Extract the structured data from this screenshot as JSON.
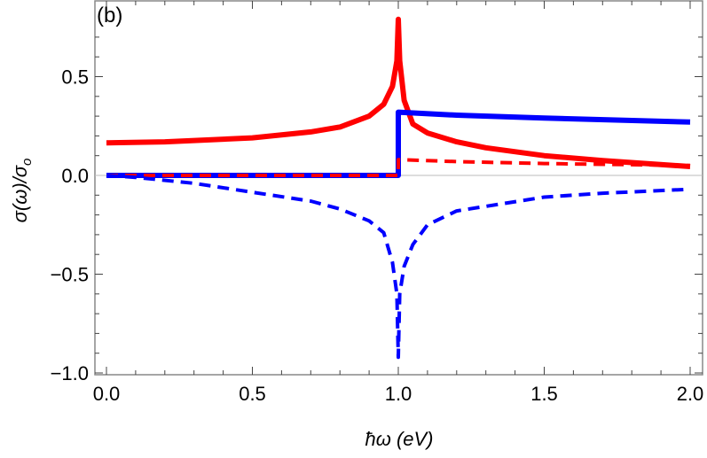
{
  "chart_data": {
    "type": "line",
    "panel_label": "(b)",
    "xlabel": "ħω (eV)",
    "ylabel": "σ(ω)/σ",
    "ylabel_sub": "o",
    "xlim": [
      0,
      2.0
    ],
    "ylim": [
      -1.0,
      0.8
    ],
    "xticks": [
      "0.0",
      "0.5",
      "1.0",
      "1.5",
      "2.0"
    ],
    "xtick_values": [
      0,
      0.5,
      1.0,
      1.5,
      2.0
    ],
    "yticks": [
      "−1.0",
      "−0.5",
      "0.0",
      "0.5"
    ],
    "ytick_values": [
      -1.0,
      -0.5,
      0.0,
      0.5
    ],
    "grid": false,
    "zero_line": true,
    "series": [
      {
        "color": "#ff0000",
        "style": "solid",
        "x": [
          0,
          0.2,
          0.5,
          0.7,
          0.8,
          0.9,
          0.95,
          0.98,
          0.995,
          1.0,
          1.005,
          1.02,
          1.05,
          1.1,
          1.2,
          1.3,
          1.5,
          1.7,
          2.0
        ],
        "y": [
          0.165,
          0.17,
          0.19,
          0.22,
          0.245,
          0.3,
          0.36,
          0.45,
          0.58,
          0.79,
          0.58,
          0.38,
          0.26,
          0.215,
          0.17,
          0.14,
          0.1,
          0.075,
          0.045
        ]
      },
      {
        "color": "#0000ff",
        "style": "solid",
        "x": [
          0,
          1.0,
          1.0,
          1.2,
          1.5,
          2.0
        ],
        "y": [
          0,
          0,
          0.32,
          0.305,
          0.29,
          0.27
        ]
      },
      {
        "color": "#ff0000",
        "style": "dashed",
        "x": [
          0,
          1.0,
          1.0,
          1.2,
          1.5,
          2.0
        ],
        "y": [
          0,
          0,
          0.08,
          0.07,
          0.06,
          0.05
        ]
      },
      {
        "color": "#0000ff",
        "style": "dashed",
        "x": [
          0,
          0.1,
          0.3,
          0.5,
          0.7,
          0.8,
          0.9,
          0.95,
          0.98,
          0.995,
          1.0,
          1.005,
          1.02,
          1.05,
          1.1,
          1.2,
          1.5,
          1.7,
          2.0
        ],
        "y": [
          0,
          -0.01,
          -0.04,
          -0.085,
          -0.13,
          -0.17,
          -0.23,
          -0.29,
          -0.44,
          -0.6,
          -0.92,
          -0.6,
          -0.46,
          -0.35,
          -0.25,
          -0.18,
          -0.11,
          -0.09,
          -0.07
        ]
      }
    ]
  }
}
